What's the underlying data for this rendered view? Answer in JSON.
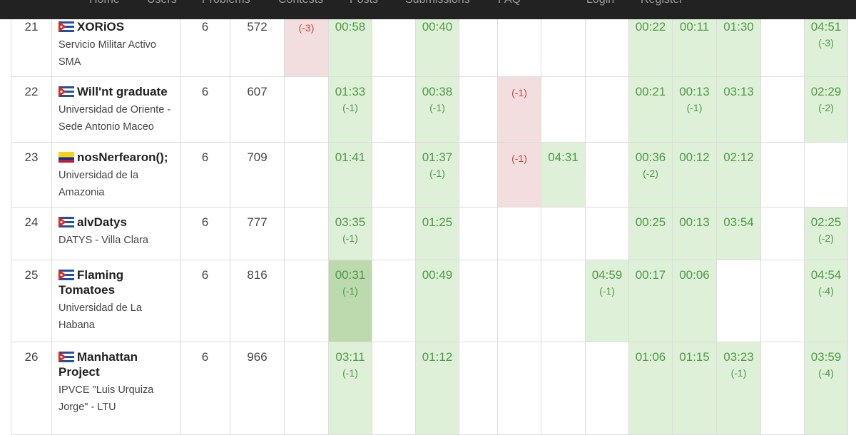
{
  "nav": {
    "items": [
      "Home",
      "Users",
      "Problems",
      "Contests",
      "Posts",
      "Submissions",
      "FAQ",
      "Login",
      "Register"
    ]
  },
  "table": {
    "rows": [
      {
        "rank": 21,
        "flag": "cuba",
        "team": "XORiOS",
        "institution": "Servicio Militar Activo SMA",
        "solved": 6,
        "penalty": 572,
        "problems": [
          {
            "status": "failed",
            "tries": "(-3)"
          },
          {
            "status": "solved",
            "time": "00:58"
          },
          null,
          {
            "status": "solved",
            "time": "00:40"
          },
          null,
          null,
          null,
          null,
          {
            "status": "solved",
            "time": "00:22"
          },
          {
            "status": "solved",
            "time": "00:11"
          },
          {
            "status": "solved",
            "time": "01:30"
          },
          null,
          {
            "status": "solved",
            "time": "04:51",
            "tries": "(-3)"
          }
        ]
      },
      {
        "rank": 22,
        "flag": "cuba",
        "team": "Will'nt graduate",
        "institution": "Universidad de Oriente - Sede Antonio Maceo",
        "solved": 6,
        "penalty": 607,
        "problems": [
          null,
          {
            "status": "solved",
            "time": "01:33",
            "tries": "(-1)"
          },
          null,
          {
            "status": "solved",
            "time": "00:38",
            "tries": "(-1)"
          },
          null,
          {
            "status": "failed",
            "tries": "(-1)"
          },
          null,
          null,
          {
            "status": "solved",
            "time": "00:21"
          },
          {
            "status": "solved",
            "time": "00:13",
            "tries": "(-1)"
          },
          {
            "status": "solved",
            "time": "03:13"
          },
          null,
          {
            "status": "solved",
            "time": "02:29",
            "tries": "(-2)"
          }
        ]
      },
      {
        "rank": 23,
        "flag": "colombia",
        "team": "nosNerfearon();",
        "institution": "Universidad de la Amazonia",
        "solved": 6,
        "penalty": 709,
        "problems": [
          null,
          {
            "status": "solved",
            "time": "01:41"
          },
          null,
          {
            "status": "solved",
            "time": "01:37",
            "tries": "(-1)"
          },
          null,
          {
            "status": "failed",
            "tries": "(-1)"
          },
          {
            "status": "solved",
            "time": "04:31"
          },
          null,
          {
            "status": "solved",
            "time": "00:36",
            "tries": "(-2)"
          },
          {
            "status": "solved",
            "time": "00:12"
          },
          {
            "status": "solved",
            "time": "02:12"
          },
          null,
          null
        ]
      },
      {
        "rank": 24,
        "flag": "cuba",
        "team": "alvDatys",
        "institution": "DATYS - Villa Clara",
        "solved": 6,
        "penalty": 777,
        "problems": [
          null,
          {
            "status": "solved",
            "time": "03:35",
            "tries": "(-1)"
          },
          null,
          {
            "status": "solved",
            "time": "01:25"
          },
          null,
          null,
          null,
          null,
          {
            "status": "solved",
            "time": "00:25"
          },
          {
            "status": "solved",
            "time": "00:13"
          },
          {
            "status": "solved",
            "time": "03:54"
          },
          null,
          {
            "status": "solved",
            "time": "02:25",
            "tries": "(-2)"
          }
        ]
      },
      {
        "rank": 25,
        "flag": "cuba",
        "team": "Flaming Tomatoes",
        "institution": "Universidad de La Habana",
        "solved": 6,
        "penalty": 816,
        "problems": [
          null,
          {
            "status": "first",
            "time": "00:31",
            "tries": "(-1)"
          },
          null,
          {
            "status": "solved",
            "time": "00:49"
          },
          null,
          null,
          null,
          {
            "status": "solved",
            "time": "04:59",
            "tries": "(-1)"
          },
          {
            "status": "solved",
            "time": "00:17"
          },
          {
            "status": "solved",
            "time": "00:06"
          },
          null,
          null,
          {
            "status": "solved",
            "time": "04:54",
            "tries": "(-4)"
          }
        ]
      },
      {
        "rank": 26,
        "flag": "cuba",
        "team": "Manhattan Project",
        "institution": "IPVCE \"Luis Urquiza Jorge\" - LTU",
        "solved": 6,
        "penalty": 966,
        "problems": [
          null,
          {
            "status": "solved",
            "time": "03:11",
            "tries": "(-1)"
          },
          null,
          {
            "status": "solved",
            "time": "01:12"
          },
          null,
          null,
          null,
          null,
          {
            "status": "solved",
            "time": "01:06"
          },
          {
            "status": "solved",
            "time": "01:15"
          },
          {
            "status": "solved",
            "time": "03:23",
            "tries": "(-1)"
          },
          null,
          {
            "status": "solved",
            "time": "03:59",
            "tries": "(-4)"
          }
        ]
      }
    ]
  }
}
